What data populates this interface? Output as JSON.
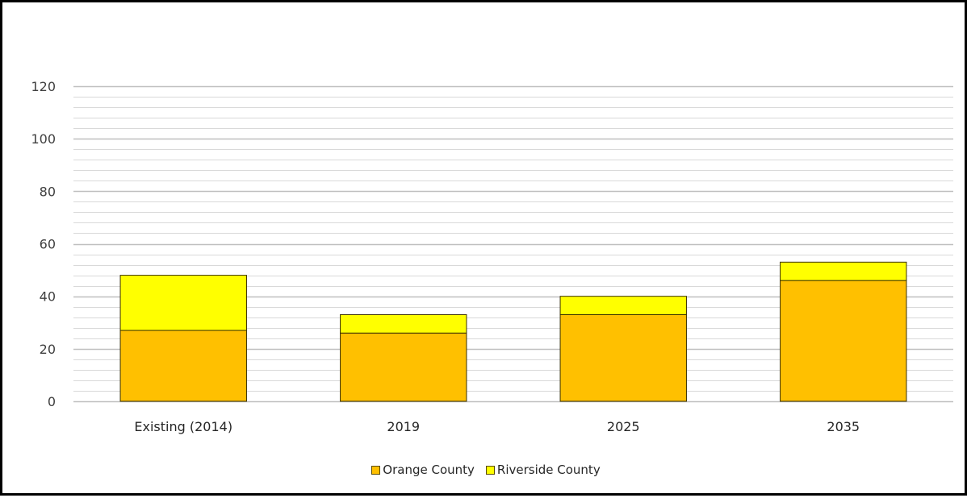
{
  "chart_data": {
    "type": "bar",
    "stacked": true,
    "categories": [
      "Existing (2014)",
      "2019",
      "2025",
      "2035"
    ],
    "series": [
      {
        "name": "Orange County",
        "values": [
          27,
          26,
          33,
          46
        ],
        "color": "#FFC000"
      },
      {
        "name": "Riverside County",
        "values": [
          21,
          7,
          7,
          7
        ],
        "color": "#FFFF00"
      }
    ],
    "title": "",
    "xlabel": "",
    "ylabel": "",
    "ylim": [
      0,
      120
    ],
    "yticks": [
      0,
      20,
      40,
      60,
      80,
      100,
      120
    ],
    "minor_tick_step": 4,
    "grid": true,
    "legend_position": "bottom"
  }
}
